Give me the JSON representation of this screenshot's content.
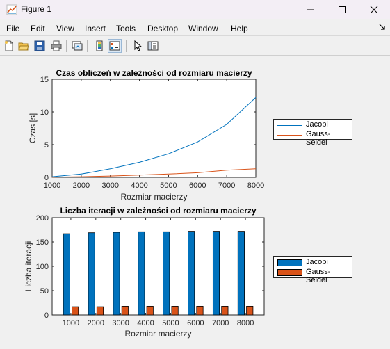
{
  "window": {
    "title": "Figure 1"
  },
  "menu": [
    "File",
    "Edit",
    "View",
    "Insert",
    "Tools",
    "Desktop",
    "Window",
    "Help"
  ],
  "colors": {
    "jacobi": "#0072bd",
    "gauss": "#d95319",
    "jacobi_bar": "#0072bd",
    "gauss_bar": "#d95319"
  },
  "icons": [
    "new-figure-icon",
    "open-file-icon",
    "save-icon",
    "print-icon",
    "link-plot-icon",
    "colorbar-icon",
    "legend-icon",
    "select-pointer-icon",
    "property-inspector-icon"
  ],
  "chart_data": [
    {
      "type": "line",
      "title": "Czas obliczeń w zależności od rozmiaru macierzy",
      "xlabel": "Rozmiar macierzy",
      "ylabel": "Czas [s]",
      "x": [
        1000,
        2000,
        3000,
        4000,
        5000,
        6000,
        7000,
        8000
      ],
      "xlim": [
        1000,
        8000
      ],
      "ylim": [
        0,
        15
      ],
      "xticks": [
        "1000",
        "2000",
        "3000",
        "4000",
        "5000",
        "6000",
        "7000",
        "8000"
      ],
      "yticks": [
        "0",
        "5",
        "10",
        "15"
      ],
      "legend_position": "outside-right",
      "series": [
        {
          "name": "Jacobi",
          "values": [
            0.1,
            0.5,
            1.3,
            2.3,
            3.6,
            5.4,
            8.1,
            12.2
          ]
        },
        {
          "name": "Gauss-Seidel",
          "values": [
            0.02,
            0.1,
            0.2,
            0.35,
            0.5,
            0.7,
            1.1,
            1.3
          ]
        }
      ]
    },
    {
      "type": "bar",
      "title": "Liczba iteracji w zależności od rozmiaru macierzy",
      "xlabel": "Rozmiar macierzy",
      "ylabel": "Liczba iteracji",
      "categories": [
        "1000",
        "2000",
        "3000",
        "4000",
        "5000",
        "6000",
        "7000",
        "8000"
      ],
      "ylim": [
        0,
        200
      ],
      "yticks": [
        "0",
        "50",
        "100",
        "150",
        "200"
      ],
      "legend_position": "outside-right",
      "series": [
        {
          "name": "Jacobi",
          "values": [
            167,
            169,
            170,
            171,
            171,
            172,
            172,
            172
          ]
        },
        {
          "name": "Gauss-Seidel",
          "values": [
            17,
            17,
            18,
            18,
            18,
            18,
            18,
            18
          ]
        }
      ]
    }
  ]
}
